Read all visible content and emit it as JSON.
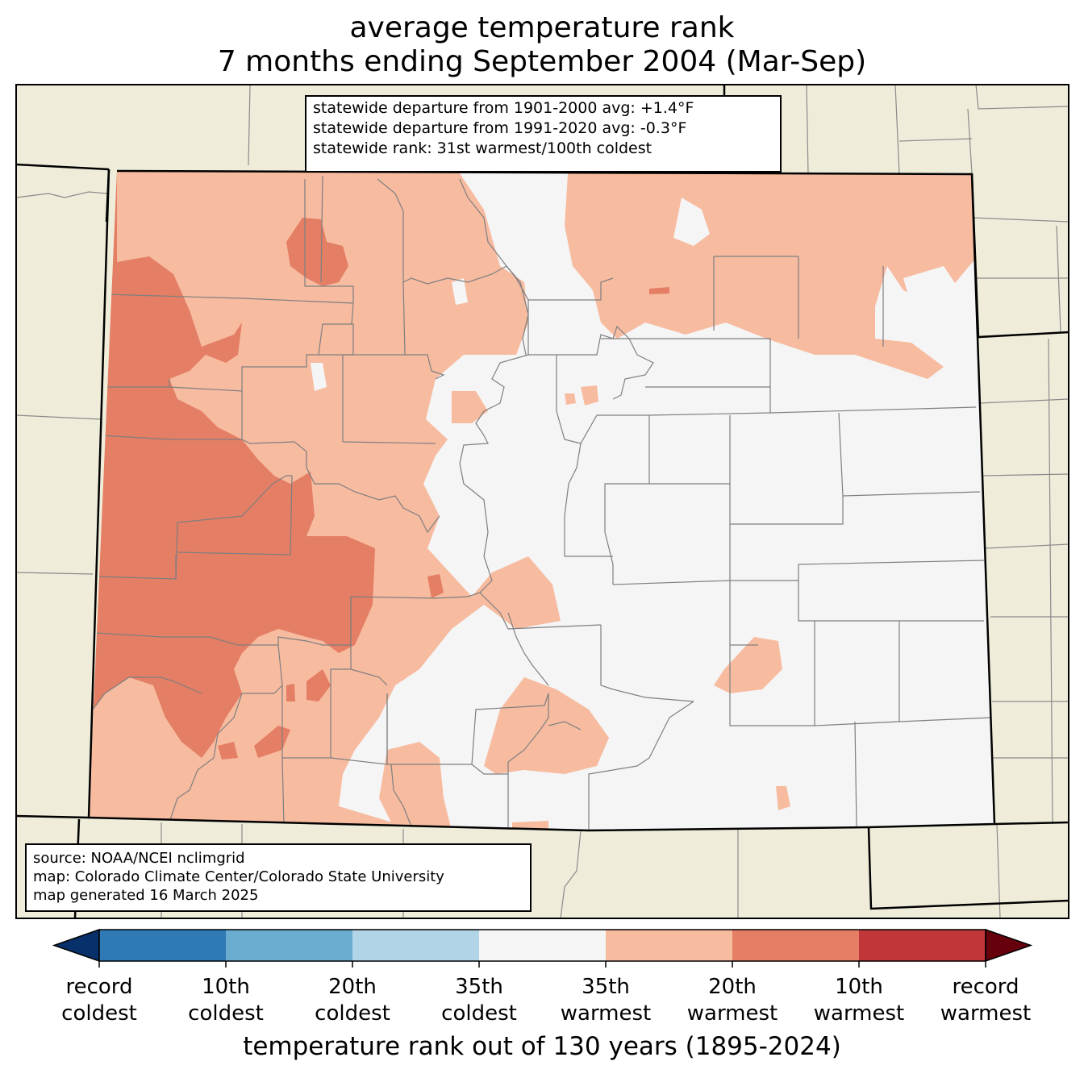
{
  "title": {
    "line1": "average temperature rank",
    "line2": "7 months ending September 2004 (Mar-Sep)"
  },
  "stats": {
    "line1": "statewide departure from 1901-2000 avg: +1.4°F",
    "line2": "statewide departure from 1991-2020 avg: -0.3°F",
    "line3": "statewide rank: 31st warmest/100th coldest"
  },
  "source": {
    "line1": "source: NOAA/NCEI nclimgrid",
    "line2": "map: Colorado Climate Center/Colorado State University",
    "line3": "map generated 16 March 2025"
  },
  "colorbar": {
    "label": "temperature rank out of 130 years (1895-2024)",
    "colors": [
      "#08306b",
      "#2f79b5",
      "#6bacd1",
      "#b1d5e7",
      "#f5f5f5",
      "#f7bba0",
      "#e47e64",
      "#c13639",
      "#67000d"
    ],
    "ticks": [
      {
        "l1": "record",
        "l2": "coldest"
      },
      {
        "l1": "10th",
        "l2": "coldest"
      },
      {
        "l1": "20th",
        "l2": "coldest"
      },
      {
        "l1": "35th",
        "l2": "coldest"
      },
      {
        "l1": "35th",
        "l2": "warmest"
      },
      {
        "l1": "20th",
        "l2": "warmest"
      },
      {
        "l1": "10th",
        "l2": "warmest"
      },
      {
        "l1": "record",
        "l2": "warmest"
      }
    ]
  },
  "map": {
    "land_color": "#efedda",
    "neutral_color": "#f5f5f5",
    "warm20_color": "#f7bba0",
    "warm10_color": "#e47e64"
  }
}
